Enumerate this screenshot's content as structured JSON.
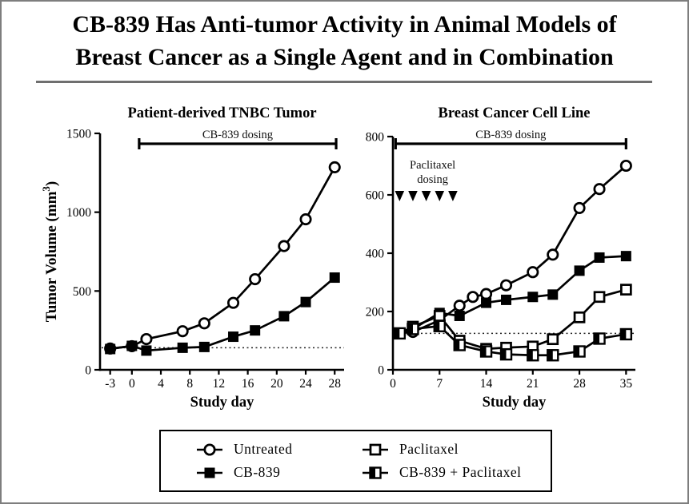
{
  "slide": {
    "title_line1": "CB-839 Has Anti-tumor Activity in Animal Models of",
    "title_line2": "Breast Cancer as a Single Agent and in Combination"
  },
  "colors": {
    "ink": "#000000",
    "frame_gray": "#7e7e7e",
    "divider_gray": "#6f6f6f"
  },
  "legend": {
    "items": [
      {
        "label": "Untreated",
        "marker": "circle-open"
      },
      {
        "label": "Paclitaxel",
        "marker": "square-open"
      },
      {
        "label": "CB-839",
        "marker": "square-filled"
      },
      {
        "label": "CB-839 + Paclitaxel",
        "marker": "square-half"
      }
    ]
  },
  "chart_data": [
    {
      "type": "line",
      "title": "Patient-derived TNBC Tumor",
      "xlabel": "Study day",
      "ylabel": "Tumor Volume (mm³)",
      "xlim": [
        -4.4,
        29.3
      ],
      "ylim": [
        0,
        1500
      ],
      "xticks": [
        -3,
        0,
        4,
        8,
        12,
        16,
        20,
        24,
        28
      ],
      "yticks": [
        0,
        500,
        1000,
        1500
      ],
      "grid": false,
      "baseline_dotted_y": 140,
      "dosing_bracket": {
        "label": "CB-839 dosing",
        "x_start": 1,
        "x_end": 28.2
      },
      "series": [
        {
          "name": "Untreated",
          "marker": "circle-open",
          "x": [
            -3,
            0,
            2,
            7,
            10,
            14,
            17,
            21,
            24,
            28
          ],
          "y": [
            135,
            150,
            195,
            245,
            295,
            425,
            575,
            785,
            955,
            1285
          ]
        },
        {
          "name": "CB-839",
          "marker": "square-filled",
          "x": [
            -3,
            0,
            2,
            7,
            10,
            14,
            17,
            21,
            24,
            28
          ],
          "y": [
            132,
            152,
            122,
            140,
            145,
            210,
            250,
            340,
            430,
            585
          ]
        }
      ]
    },
    {
      "type": "line",
      "title": "Breast Cancer Cell Line",
      "xlabel": "Study day",
      "ylabel": "",
      "xlim": [
        0,
        36.4
      ],
      "ylim": [
        0,
        800
      ],
      "xticks": [
        0,
        7,
        14,
        21,
        28,
        35
      ],
      "yticks": [
        0,
        200,
        400,
        600,
        800
      ],
      "grid": false,
      "baseline_dotted_y": 125,
      "dosing_bracket": {
        "label": "CB-839 dosing",
        "x_start": 0.4,
        "x_end": 35
      },
      "paclitaxel_dosing": {
        "label_line1": "Paclitaxel",
        "label_line2": "dosing",
        "days": [
          1,
          3,
          5,
          7,
          9
        ],
        "y_value": 600
      },
      "series": [
        {
          "name": "Untreated",
          "marker": "circle-open",
          "x": [
            1,
            3,
            7,
            10,
            12,
            14,
            17,
            21,
            24,
            28,
            31,
            35
          ],
          "y": [
            125,
            130,
            170,
            220,
            250,
            260,
            290,
            335,
            395,
            555,
            620,
            700
          ]
        },
        {
          "name": "CB-839",
          "marker": "square-filled",
          "x": [
            1,
            3,
            7,
            10,
            14,
            17,
            21,
            24,
            28,
            31,
            35
          ],
          "y": [
            125,
            140,
            195,
            185,
            230,
            240,
            250,
            258,
            340,
            385,
            390
          ]
        },
        {
          "name": "Paclitaxel",
          "marker": "square-open",
          "x": [
            1,
            3,
            7,
            10,
            14,
            17,
            21,
            24,
            28,
            31,
            35
          ],
          "y": [
            125,
            148,
            185,
            100,
            72,
            76,
            80,
            105,
            180,
            250,
            275
          ]
        },
        {
          "name": "CB-839 + Paclitaxel",
          "marker": "square-half",
          "x": [
            1,
            3,
            7,
            10,
            14,
            17,
            21,
            24,
            28,
            31,
            35
          ],
          "y": [
            125,
            140,
            150,
            85,
            63,
            53,
            50,
            50,
            63,
            107,
            122
          ]
        }
      ]
    }
  ]
}
